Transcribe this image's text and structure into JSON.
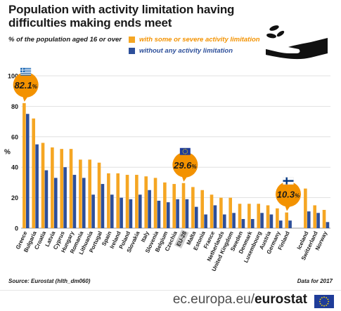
{
  "header": {
    "title": "Population with activity limitation having difficulties making ends meet",
    "subtitle": "% of the population aged 16 or over"
  },
  "legend": {
    "series_a": "with some or severe activity limitation",
    "series_b": "without any activity limitation"
  },
  "footer": {
    "source": "Source: Eurostat (hlth_dm060)",
    "note": "Data for 2017",
    "site_prefix": "ec.europa.eu/",
    "site_brand": "eurostat"
  },
  "colors": {
    "orange": "#F5A623",
    "blue": "#2D4F9A",
    "callout": "#F39200",
    "eu_blue": "#1F3C99",
    "eu_yellow": "#FFDD00"
  },
  "icons": {
    "hand": "hand-coins-icon",
    "greece": "greece-flag-icon",
    "eu": "eu-flag-icon",
    "finland": "finland-flag-icon"
  },
  "callouts": [
    {
      "country": "Greece",
      "label": "82.1",
      "unit": "%",
      "flag": "greece"
    },
    {
      "country": "EU-28",
      "label": "29.6",
      "unit": "%",
      "flag": "eu"
    },
    {
      "country": "Finland",
      "label": "10.3",
      "unit": "%",
      "flag": "finland"
    }
  ],
  "chart_data": {
    "type": "bar",
    "ylabel": "%",
    "ylim": [
      0,
      100
    ],
    "yticks": [
      0,
      20,
      40,
      60,
      80,
      100
    ],
    "grid": true,
    "legend_position": "top",
    "categories": [
      "Greece",
      "Bulgaria",
      "Croatia",
      "Latvia",
      "Cyprus",
      "Hungary",
      "Romania",
      "Lithuania",
      "Portugal",
      "Spain",
      "Ireland",
      "Poland",
      "Slovakia",
      "Italy",
      "Slovenia",
      "Belgium",
      "Czechia",
      "EU-28",
      "Malta",
      "Estonia",
      "France",
      "Netherlands",
      "United Kingdom",
      "Sweden",
      "Denmark",
      "Luxembourg",
      "Austria",
      "Germany",
      "Finland",
      "",
      "Iceland",
      "Switzerland",
      "Norway"
    ],
    "series": [
      {
        "name": "with some or severe activity limitation",
        "values": [
          82.1,
          72,
          56,
          53,
          52,
          52,
          45,
          45,
          43,
          36,
          36,
          35,
          35,
          34,
          33,
          30,
          29,
          29.6,
          27,
          25,
          22,
          20,
          20,
          16,
          16,
          16,
          15,
          13,
          10.3,
          null,
          26,
          15,
          12
        ]
      },
      {
        "name": "without any activity limitation",
        "values": [
          75,
          55,
          38,
          33,
          40,
          35,
          33,
          22,
          29,
          22,
          20,
          19,
          22,
          25,
          18,
          17,
          19,
          19,
          14,
          9,
          15,
          9,
          10,
          6,
          6,
          10,
          9,
          5,
          5,
          null,
          11,
          10,
          4
        ]
      }
    ]
  }
}
